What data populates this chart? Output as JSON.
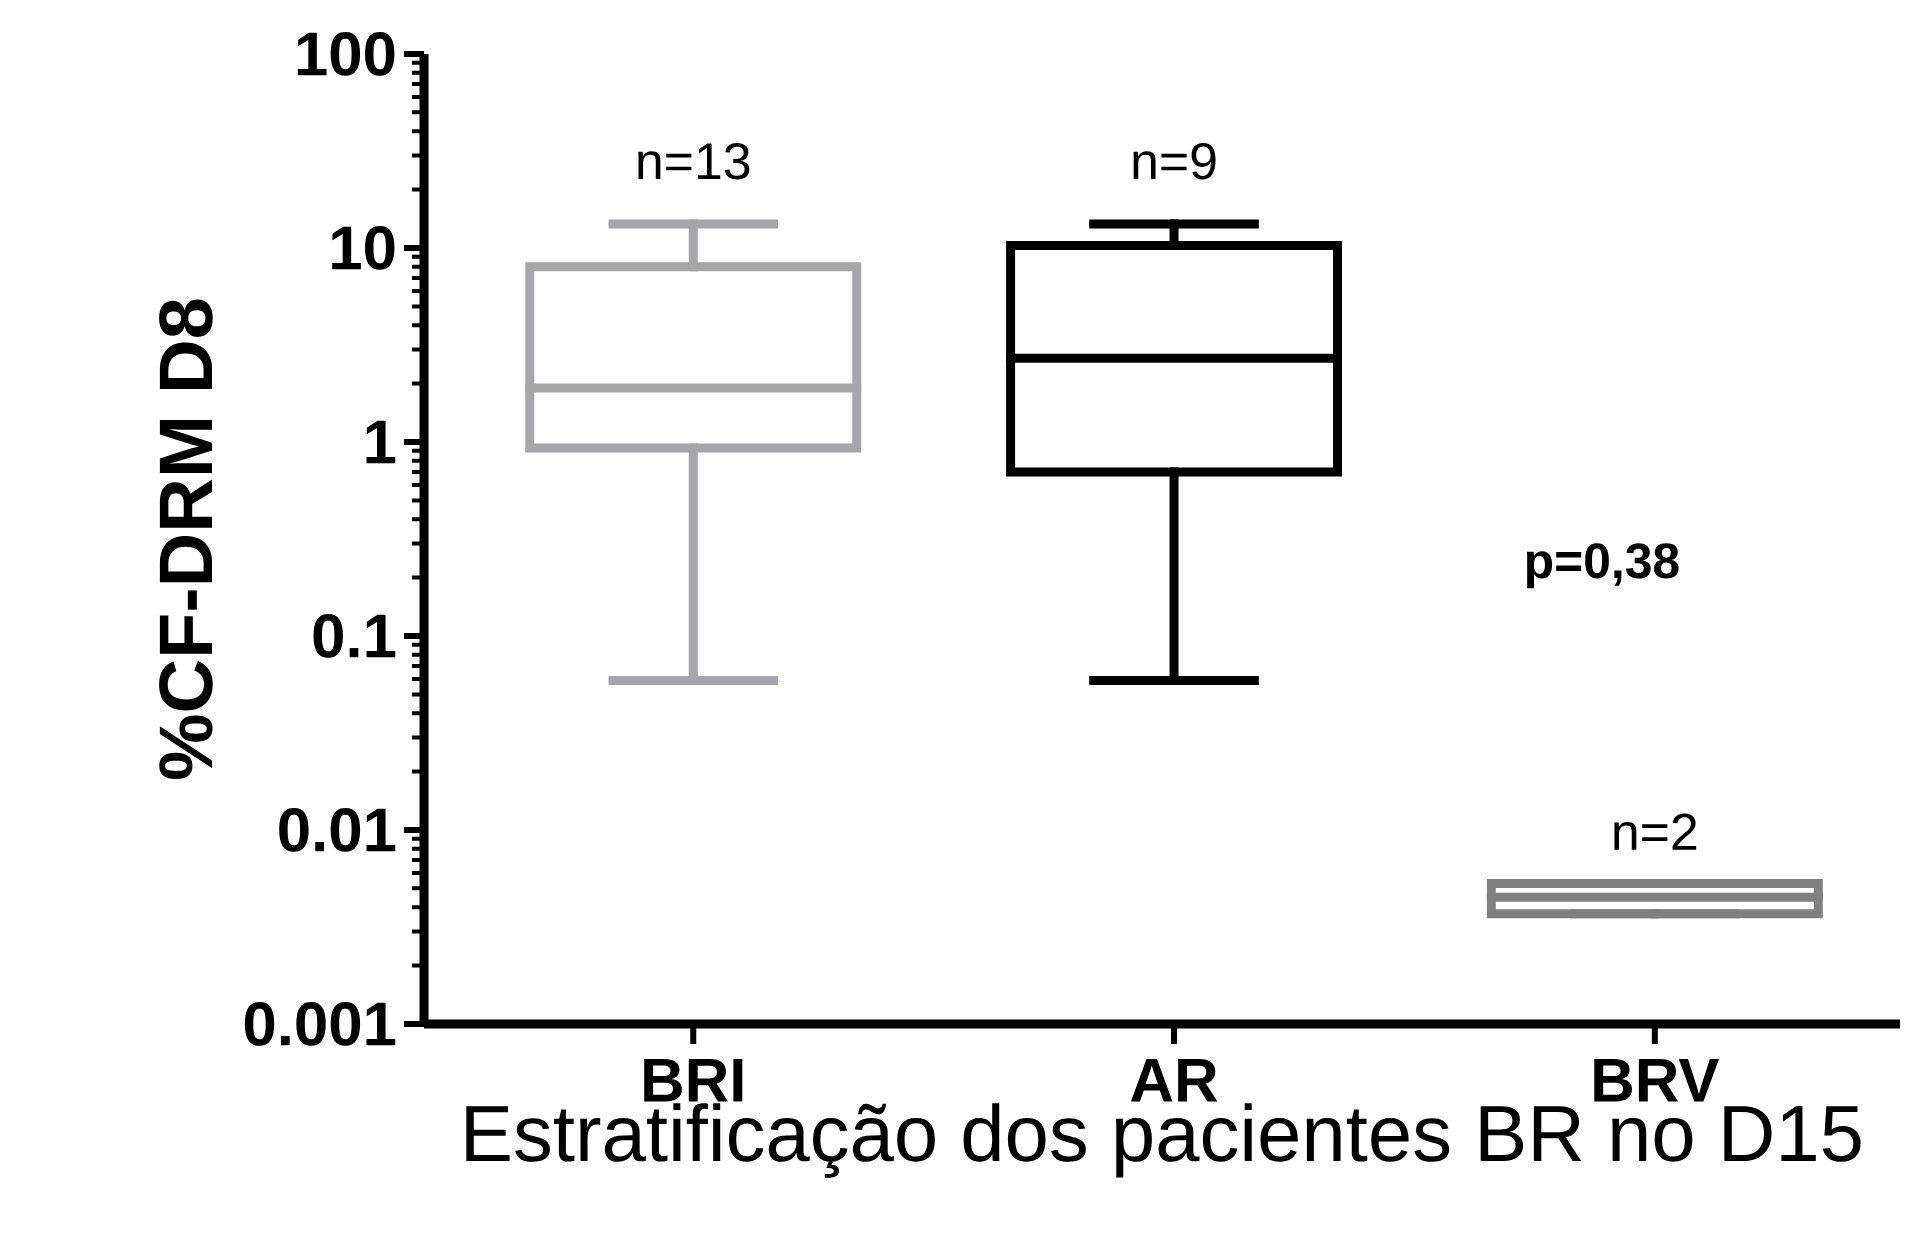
{
  "chart_data": {
    "type": "box",
    "categories": [
      "BRI",
      "AR",
      "BRV"
    ],
    "boxes": [
      {
        "low": 0.059,
        "q1": 0.93,
        "median": 1.9,
        "q3": 8.0,
        "high": 13.3
      },
      {
        "low": 0.059,
        "q1": 0.7,
        "median": 2.7,
        "q3": 10.3,
        "high": 13.3
      },
      {
        "low": 0.0037,
        "q1": 0.0037,
        "median": 0.0045,
        "q3": 0.0053,
        "high": 0.0053
      }
    ],
    "colors": [
      "#a6a6aa",
      "#000000",
      "#808080"
    ],
    "xlabel": "Estratificação dos pacientes BR no D15",
    "ylabel": "%CF-DRM D8",
    "log": true,
    "ylim": [
      0.001,
      100
    ],
    "yticks": [
      0.001,
      0.01,
      0.1,
      1,
      10,
      100
    ],
    "annotations": [
      "n=13",
      "n=9",
      "n=2",
      "p=0,38"
    ]
  }
}
